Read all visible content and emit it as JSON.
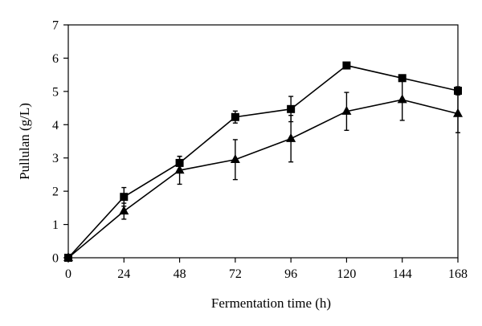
{
  "chart_data": {
    "type": "line",
    "title": "",
    "xlabel": "Fermentation time (h)",
    "ylabel": "Pullulan (g/L)",
    "xlim": [
      0,
      168
    ],
    "ylim": [
      0,
      7
    ],
    "xticks": [
      0,
      24,
      48,
      72,
      96,
      120,
      144,
      168
    ],
    "yticks": [
      0,
      1,
      2,
      3,
      4,
      5,
      6,
      7
    ],
    "grid": false,
    "legend": "none",
    "x": [
      0,
      24,
      48,
      72,
      96,
      120,
      144,
      168
    ],
    "series": [
      {
        "marker": "square",
        "color": "#000000",
        "values": [
          0,
          1.83,
          2.85,
          4.23,
          4.47,
          5.78,
          5.4,
          5.02
        ],
        "errors": [
          0,
          0.28,
          0.2,
          0.18,
          0.38,
          0.07,
          0.07,
          0.12
        ]
      },
      {
        "marker": "triangle",
        "color": "#000000",
        "values": [
          0,
          1.4,
          2.63,
          2.95,
          3.58,
          4.4,
          4.75,
          4.33
        ],
        "errors": [
          0,
          0.24,
          0.42,
          0.6,
          0.7,
          0.57,
          0.62,
          0.57
        ]
      }
    ]
  }
}
